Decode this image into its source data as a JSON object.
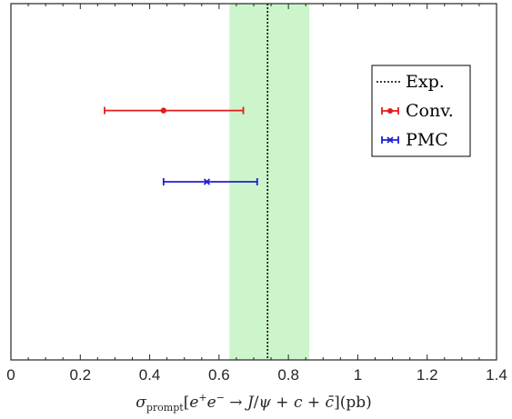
{
  "chart_data": {
    "type": "errorbar",
    "title": "",
    "xlabel": "σ_prompt[e⁺e⁻ → J/ψ + c + c̄](pb)",
    "xlim": [
      0,
      1.4
    ],
    "xticks": [
      0,
      0.2,
      0.4,
      0.6,
      0.8,
      1,
      1.2,
      1.4
    ],
    "xtick_labels": [
      "0",
      "0.2",
      "0.4",
      "0.6",
      "0.8",
      "1",
      "1.2",
      "1.4"
    ],
    "ylim": [
      0,
      1
    ],
    "grid": false,
    "legend_position": "top-right",
    "experiment": {
      "name": "Exp.",
      "value": 0.74,
      "band": [
        0.63,
        0.86
      ],
      "line_color": "#000000",
      "band_color": "#ccf5cc"
    },
    "series": [
      {
        "name": "Conv.",
        "value": 0.44,
        "lower": 0.27,
        "upper": 0.67,
        "y": 0.7,
        "color": "#e41a1c",
        "marker": "dot"
      },
      {
        "name": "PMC",
        "value": 0.565,
        "lower": 0.44,
        "upper": 0.71,
        "y": 0.5,
        "color": "#1f1fd6",
        "marker": "x"
      }
    ]
  }
}
